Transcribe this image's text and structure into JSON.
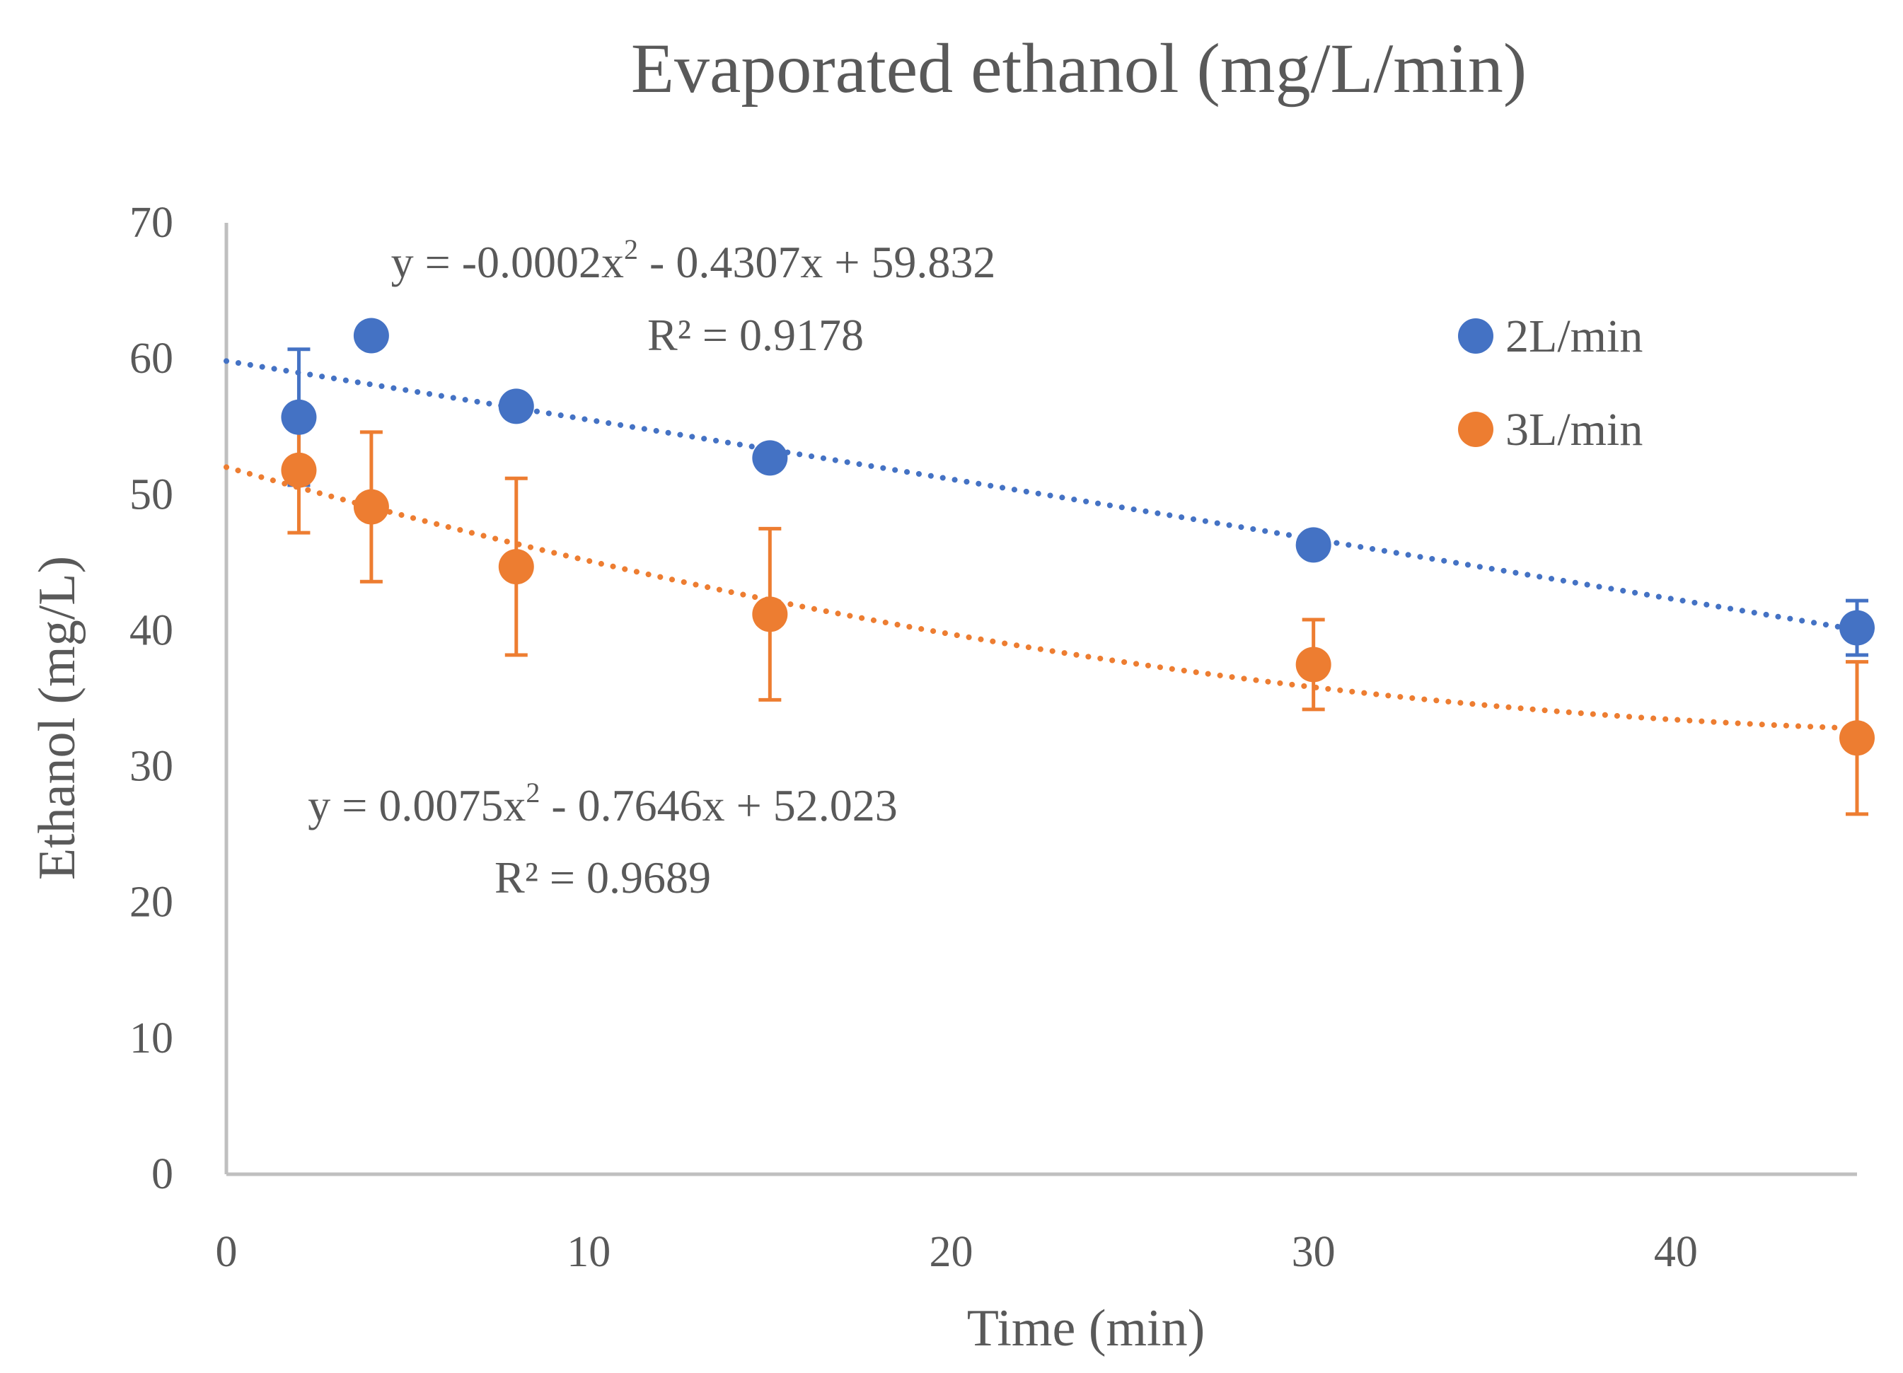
{
  "chart_data": {
    "type": "scatter",
    "title": "Evaporated ethanol (mg/L/min)",
    "xlabel": "Time (min)",
    "ylabel": "Ethanol (mg/L)",
    "xlim": [
      0,
      45
    ],
    "ylim": [
      0,
      70
    ],
    "xticks": [
      "0",
      "10",
      "20",
      "30",
      "40"
    ],
    "yticks": [
      "0",
      "10",
      "20",
      "30",
      "40",
      "50",
      "60",
      "70"
    ],
    "legend_position": "top-right",
    "grid": false,
    "series": [
      {
        "name": "2L/min",
        "color": "#4472C4",
        "x": [
          2,
          4,
          8,
          15,
          30,
          45
        ],
        "y": [
          55.7,
          61.7,
          56.5,
          52.7,
          46.3,
          40.2
        ],
        "error": [
          5.0,
          0.5,
          0.5,
          0.5,
          0.5,
          2.0
        ],
        "trendline": {
          "type": "polynomial",
          "coefficients": [
            -0.0002,
            -0.4307,
            59.832
          ],
          "equation_prefix": "y = -0.0002x",
          "equation_sup": "2",
          "equation_suffix": " - 0.4307x + 59.832",
          "r2_label": "R² = 0.9178"
        }
      },
      {
        "name": "3L/min",
        "color": "#ED7D31",
        "x": [
          2,
          4,
          8,
          15,
          30,
          45
        ],
        "y": [
          51.8,
          49.1,
          44.7,
          41.2,
          37.5,
          32.1
        ],
        "error": [
          4.6,
          5.5,
          6.5,
          6.3,
          3.3,
          5.6
        ],
        "trendline": {
          "type": "polynomial",
          "coefficients": [
            0.0075,
            -0.7646,
            52.023
          ],
          "equation_prefix": "y = 0.0075x",
          "equation_sup": "2",
          "equation_suffix": " - 0.7646x + 52.023",
          "r2_label": "R² = 0.9689"
        }
      }
    ]
  }
}
